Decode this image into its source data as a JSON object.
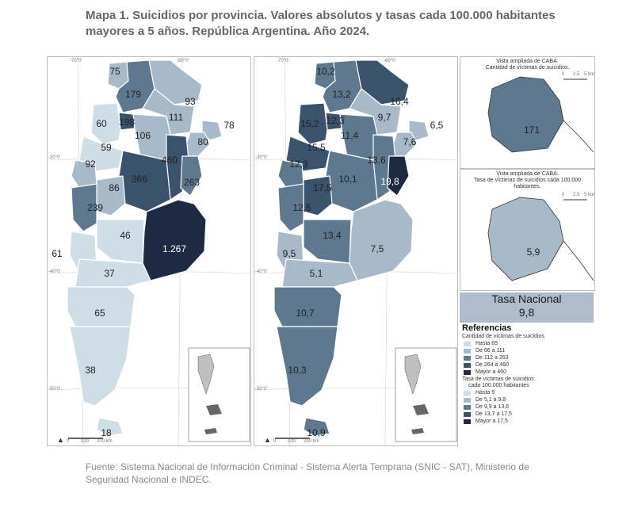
{
  "title": "Mapa 1. Suicidios por provincia. Valores absolutos y tasas cada 100.000 habitantes mayores a 5 años. República Argentina. Año 2024.",
  "map_left": {
    "coords": {
      "top_70": "-70°0'",
      "top_60": "-60°0'",
      "lat_30": "-30°0'",
      "lat_40": "-40°0'",
      "lat_50": "-50°0'"
    },
    "labels": [
      "75",
      "179",
      "198",
      "60",
      "106",
      "111",
      "93",
      "78",
      "80",
      "59",
      "92",
      "460",
      "366",
      "263",
      "86",
      "239",
      "46",
      "1.267",
      "61",
      "37",
      "65",
      "38",
      "18"
    ],
    "scale": {
      "zero": "0",
      "mid": "100",
      "end": "200 km"
    }
  },
  "map_right": {
    "coords": {
      "top_70": "-70°0'",
      "top_60": "-60°0'",
      "lat_30": "-30°0'",
      "lat_40": "-40°0'",
      "lat_50": "-50°0'"
    },
    "labels": [
      "10,2",
      "13,2",
      "16,4",
      "15,2",
      "12,3",
      "9,7",
      "6,5",
      "11,4",
      "15,5",
      "7,6",
      "12,3",
      "13,6",
      "10,1",
      "17,5",
      "19,8",
      "12,5",
      "13,4",
      "7,5",
      "9,5",
      "5,1",
      "10,7",
      "10,3",
      "10,9"
    ],
    "scale": {
      "zero": "0",
      "mid": "100",
      "end": "200 km"
    }
  },
  "inset_top": {
    "caption_1": "Vista ampliada de CABA.",
    "caption_2": "Cantidad de víctimas de suicidios.",
    "value": "171",
    "scale": {
      "zero": "0",
      "mid": "2,5",
      "end": "5 km"
    }
  },
  "inset_bottom": {
    "caption_1": "Vista ampliada de CABA.",
    "caption_2": "Tasa de víctimas de suicidios cada 100.000",
    "caption_3": "habitantes.",
    "value": "5,9",
    "scale": {
      "zero": "0",
      "mid": "2,5",
      "end": "5 km"
    }
  },
  "tasa_nacional": {
    "label": "Tasa Nacional",
    "value": "9,8"
  },
  "legend": {
    "title": "Referencias",
    "group_1": {
      "title": "Cantidad de víctimas de suicidios",
      "items": [
        {
          "label": "Hasta 65",
          "color": "#cfdde6"
        },
        {
          "label": "De 66 a 111",
          "color": "#a8b9ca"
        },
        {
          "label": "De 112 a 263",
          "color": "#5e7890"
        },
        {
          "label": "De 264 a 460",
          "color": "#3a526c"
        },
        {
          "label": "Mayor a 460",
          "color": "#1e2a44"
        }
      ]
    },
    "group_2": {
      "title_1": "Tasa de víctimas de suicidios",
      "title_2": "cada 100.000 habitantes",
      "items": [
        {
          "label": "Hasta 5",
          "color": "#cfdde6"
        },
        {
          "label": "De 5,1 a 9,8",
          "color": "#a8b9ca"
        },
        {
          "label": "De 9,9 a 13,6",
          "color": "#5e7890"
        },
        {
          "label": "De 13,7 a 17,5",
          "color": "#3a526c"
        },
        {
          "label": "Mayor a 17,5",
          "color": "#1e2a44"
        }
      ]
    }
  },
  "source": "Fuente: Sistema Nacional de Información Criminal - Sistema Alerta Temprana (SNIC - SAT), Ministerio de Seguridad Nacional e INDEC."
}
